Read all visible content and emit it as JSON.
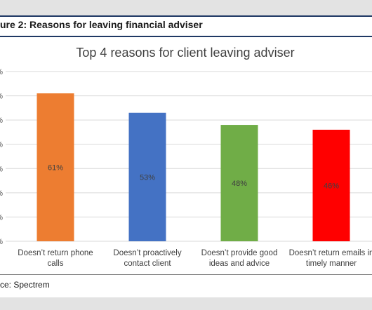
{
  "figure": {
    "caption": "ure 2: Reasons for leaving financial adviser",
    "source": "ce: Spectrem"
  },
  "chart_data": {
    "type": "bar",
    "title": "Top 4 reasons for client leaving adviser",
    "categories": [
      [
        "Doesn’t return phone",
        "calls"
      ],
      [
        "Doesn’t proactively",
        "contact client"
      ],
      [
        "Doesn’t provide good",
        "ideas and advice"
      ],
      [
        "Doesn’t return emails in",
        "timely manner"
      ]
    ],
    "values": [
      61,
      53,
      48,
      46
    ],
    "data_labels": [
      "61%",
      "53%",
      "48%",
      "46%"
    ],
    "colors": [
      "#ED7D31",
      "#4472C4",
      "#70AD47",
      "#FF0000"
    ],
    "ylim": [
      0,
      70
    ],
    "yticks": [
      0,
      10,
      20,
      30,
      40,
      50,
      60,
      70
    ],
    "ytick_labels": [
      "%",
      "%",
      "%",
      "%",
      "%",
      "%",
      "%",
      "%"
    ],
    "grid": true,
    "legend": "none"
  }
}
